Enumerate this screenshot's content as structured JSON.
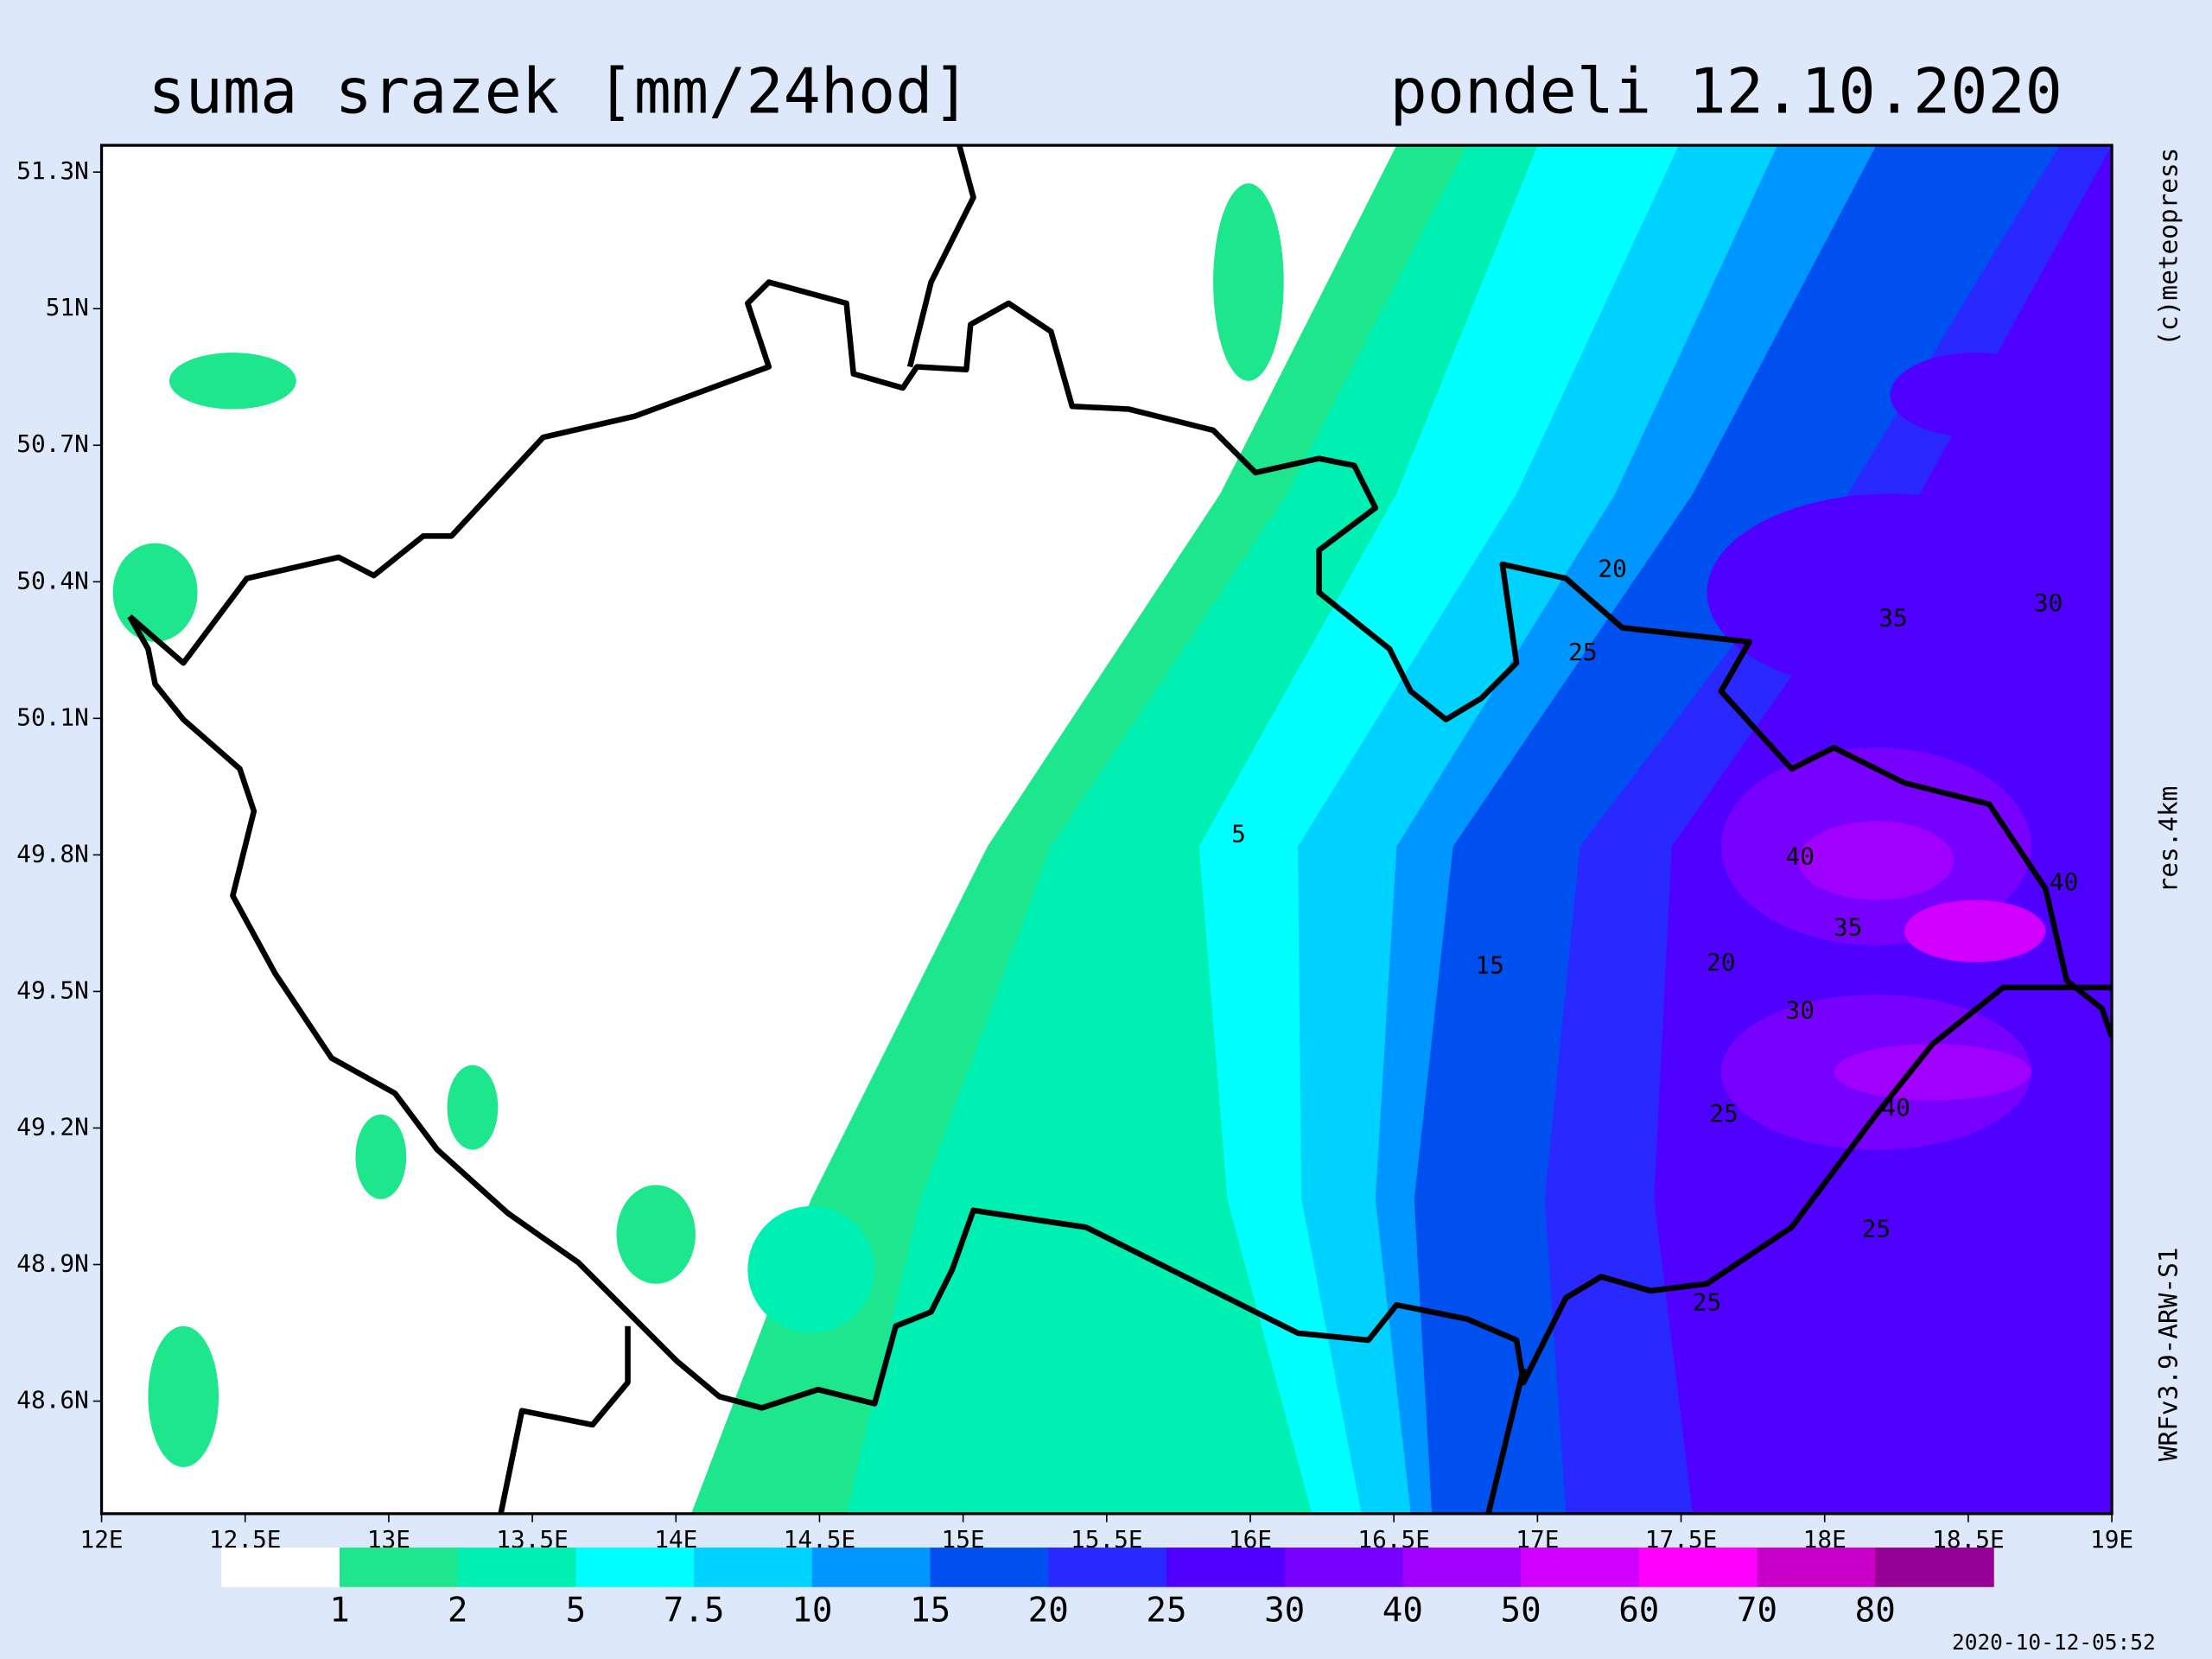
{
  "header": {
    "title": "suma srazek [mm/24hod]",
    "date": "pondeli 12.10.2020"
  },
  "map": {
    "lat_labels": [
      "51.3N",
      "51N",
      "50.7N",
      "50.4N",
      "50.1N",
      "49.8N",
      "49.5N",
      "49.2N",
      "48.9N",
      "48.6N"
    ],
    "lon_labels": [
      "12E",
      "12.5E",
      "13E",
      "13.5E",
      "14E",
      "14.5E",
      "15E",
      "15.5E",
      "16E",
      "16.5E",
      "17E",
      "17.5E",
      "18E",
      "18.5E",
      "19E"
    ],
    "contour_labels": [
      "20",
      "25",
      "35",
      "30",
      "5",
      "40",
      "40",
      "35",
      "15",
      "20",
      "30",
      "25",
      "40",
      "25",
      "25"
    ]
  },
  "legend": {
    "labels": [
      "1",
      "2",
      "5",
      "7.5",
      "10",
      "15",
      "20",
      "25",
      "30",
      "40",
      "50",
      "60",
      "70",
      "80"
    ],
    "colors": [
      "#ffffff",
      "#1ee68c",
      "#00f0b4",
      "#00ffff",
      "#00d2ff",
      "#0096ff",
      "#0050f0",
      "#2828ff",
      "#5000ff",
      "#7800ff",
      "#a000ff",
      "#d200ff",
      "#ff00ff",
      "#c800c8",
      "#960096"
    ]
  },
  "side": {
    "copyright": "(c)meteopress",
    "resolution": "res.4km",
    "model": "WRFv3.9-ARW-S1"
  },
  "timestamp": "2020-10-12-05:52"
}
